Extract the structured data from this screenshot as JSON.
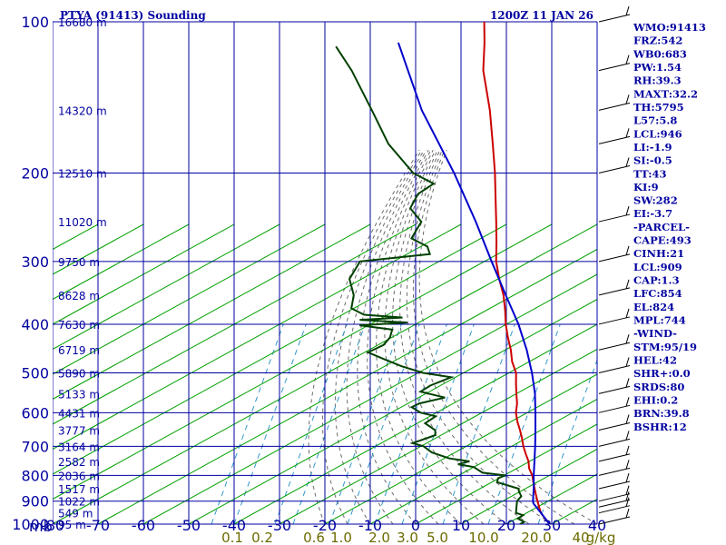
{
  "header": {
    "station": "PTYA (91413) Sounding",
    "time": "1200Z 11 JAN 26"
  },
  "chart_data": {
    "type": "line",
    "subtype": "skew-T log-P sounding",
    "xlabel": "",
    "ylabel": "",
    "x_unit_label": "mb",
    "temperature_axis": {
      "ticks": [
        -80,
        -70,
        -60,
        -50,
        -40,
        -30,
        -20,
        -10,
        0,
        10,
        20,
        30,
        40
      ],
      "range": [
        -80,
        40
      ]
    },
    "pressure_axis": {
      "ticks": [
        100,
        200,
        300,
        400,
        500,
        600,
        700,
        800,
        900,
        1000
      ],
      "range": [
        100,
        1000
      ],
      "scale": "log"
    },
    "height_labels": [
      {
        "p": 100,
        "label": "16680 m"
      },
      {
        "p": 150,
        "label": "14320 m"
      },
      {
        "p": 200,
        "label": "12510 m"
      },
      {
        "p": 250,
        "label": "11020 m"
      },
      {
        "p": 300,
        "label": "9750 m"
      },
      {
        "p": 350,
        "label": "8628 m"
      },
      {
        "p": 400,
        "label": "7630 m"
      },
      {
        "p": 450,
        "label": "6719 m"
      },
      {
        "p": 500,
        "label": "5890 m"
      },
      {
        "p": 550,
        "label": "5133 m"
      },
      {
        "p": 600,
        "label": "4431 m"
      },
      {
        "p": 650,
        "label": "3777 m"
      },
      {
        "p": 700,
        "label": "3164 m"
      },
      {
        "p": 750,
        "label": "2582 m"
      },
      {
        "p": 800,
        "label": "2036 m"
      },
      {
        "p": 850,
        "label": "1517 m"
      },
      {
        "p": 900,
        "label": "1022 m"
      },
      {
        "p": 950,
        "label": "549 m"
      },
      {
        "p": 1000,
        "label": "95 m"
      }
    ],
    "mixing_ratio_labels": [
      "0.1",
      "0.2",
      "0.6",
      "1.0",
      "2.0",
      "3.0",
      "5.0",
      "10.0",
      "20.0",
      "40",
      "g/kg"
    ],
    "series": [
      {
        "name": "",
        "role": "temperature",
        "color": "#cc0000",
        "points": [
          [
            1000,
            29.5
          ],
          [
            975,
            27.5
          ],
          [
            950,
            25.5
          ],
          [
            925,
            24.0
          ],
          [
            900,
            22.5
          ],
          [
            875,
            21.0
          ],
          [
            850,
            19.5
          ],
          [
            825,
            18.0
          ],
          [
            800,
            16.5
          ],
          [
            775,
            14.5
          ],
          [
            750,
            13.0
          ],
          [
            725,
            11.0
          ],
          [
            700,
            9.0
          ],
          [
            675,
            7.2
          ],
          [
            650,
            5.2
          ],
          [
            625,
            3.0
          ],
          [
            600,
            1.0
          ],
          [
            575,
            -0.5
          ],
          [
            550,
            -2.5
          ],
          [
            525,
            -4.5
          ],
          [
            500,
            -6.5
          ],
          [
            475,
            -9.5
          ],
          [
            450,
            -12.0
          ],
          [
            425,
            -15.0
          ],
          [
            400,
            -18.0
          ],
          [
            375,
            -20.8
          ],
          [
            350,
            -24.0
          ],
          [
            325,
            -28.0
          ],
          [
            300,
            -32.0
          ],
          [
            275,
            -35.5
          ],
          [
            250,
            -39.5
          ],
          [
            225,
            -44.0
          ],
          [
            200,
            -49.0
          ],
          [
            175,
            -55.0
          ],
          [
            150,
            -62.0
          ],
          [
            125,
            -71.0
          ],
          [
            110,
            -76.0
          ],
          [
            100,
            -80.0
          ]
        ]
      },
      {
        "name": "",
        "role": "dewpoint",
        "color": "#004000",
        "points": [
          [
            1000,
            23.0
          ],
          [
            990,
            23.5
          ],
          [
            975,
            21.5
          ],
          [
            960,
            22.0
          ],
          [
            950,
            20.0
          ],
          [
            925,
            19.0
          ],
          [
            900,
            18.0
          ],
          [
            880,
            18.0
          ],
          [
            860,
            16.5
          ],
          [
            850,
            16.0
          ],
          [
            825,
            10.0
          ],
          [
            810,
            9.5
          ],
          [
            800,
            10.5
          ],
          [
            790,
            5.0
          ],
          [
            770,
            2.0
          ],
          [
            760,
            -2.0
          ],
          [
            750,
            0.0
          ],
          [
            740,
            -5.0
          ],
          [
            720,
            -10.0
          ],
          [
            700,
            -13.0
          ],
          [
            690,
            -16.0
          ],
          [
            665,
            -12.5
          ],
          [
            650,
            -13.5
          ],
          [
            630,
            -17.0
          ],
          [
            610,
            -16.0
          ],
          [
            600,
            -20.0
          ],
          [
            585,
            -23.0
          ],
          [
            575,
            -22.0
          ],
          [
            560,
            -17.5
          ],
          [
            545,
            -24.0
          ],
          [
            530,
            -23.0
          ],
          [
            510,
            -20.0
          ],
          [
            500,
            -27.0
          ],
          [
            485,
            -33.0
          ],
          [
            470,
            -38.0
          ],
          [
            455,
            -43.0
          ],
          [
            440,
            -41.0
          ],
          [
            425,
            -41.0
          ],
          [
            410,
            -42.0
          ],
          [
            402,
            -50.0
          ],
          [
            397,
            -40.0
          ],
          [
            392,
            -51.0
          ],
          [
            388,
            -42.0
          ],
          [
            383,
            -51.0
          ],
          [
            372,
            -55.0
          ],
          [
            350,
            -57.0
          ],
          [
            325,
            -61.0
          ],
          [
            300,
            -62.0
          ],
          [
            290,
            -48.0
          ],
          [
            280,
            -50.0
          ],
          [
            270,
            -55.0
          ],
          [
            260,
            -55.5
          ],
          [
            250,
            -56.0
          ],
          [
            235,
            -61.0
          ],
          [
            220,
            -62.0
          ],
          [
            210,
            -60.5
          ],
          [
            200,
            -67.0
          ],
          [
            175,
            -78.0
          ],
          [
            150,
            -88.0
          ],
          [
            125,
            -100.0
          ],
          [
            112,
            -108.0
          ]
        ]
      },
      {
        "name": "",
        "role": "parcel",
        "color": "#0000cc",
        "points": [
          [
            1000,
            29.5
          ],
          [
            950,
            25.5
          ],
          [
            909,
            22.0
          ],
          [
            900,
            21.5
          ],
          [
            850,
            19.3
          ],
          [
            800,
            16.8
          ],
          [
            750,
            14.3
          ],
          [
            700,
            11.6
          ],
          [
            650,
            8.6
          ],
          [
            600,
            5.3
          ],
          [
            550,
            1.6
          ],
          [
            500,
            -3.0
          ],
          [
            450,
            -8.5
          ],
          [
            400,
            -15.2
          ],
          [
            350,
            -23.5
          ],
          [
            300,
            -33.0
          ],
          [
            250,
            -44.0
          ],
          [
            200,
            -58.0
          ],
          [
            150,
            -77.0
          ],
          [
            110,
            -95.0
          ]
        ]
      }
    ],
    "indices": [
      {
        "name": "WMO",
        "value": "91413"
      },
      {
        "name": "FRZ",
        "value": "542"
      },
      {
        "name": "WB0",
        "value": "683"
      },
      {
        "name": "PW",
        "value": "1.54"
      },
      {
        "name": "RH",
        "value": "39.3"
      },
      {
        "name": "MAXT",
        "value": "32.2"
      },
      {
        "name": "TH",
        "value": "5795"
      },
      {
        "name": "L57",
        "value": "5.8"
      },
      {
        "name": "LCL",
        "value": "946"
      },
      {
        "name": "LI",
        "value": "-1.9"
      },
      {
        "name": "SI",
        "value": "-0.5"
      },
      {
        "name": "TT",
        "value": "43"
      },
      {
        "name": "KI",
        "value": "9"
      },
      {
        "name": "SW",
        "value": "282"
      },
      {
        "name": "EI",
        "value": "-3.7"
      },
      {
        "name": "",
        "value": "-PARCEL-"
      },
      {
        "name": "CAPE",
        "value": "493"
      },
      {
        "name": "CINH",
        "value": "21"
      },
      {
        "name": "LCL",
        "value": "909"
      },
      {
        "name": "CAP",
        "value": "1.3"
      },
      {
        "name": "LFC",
        "value": "854"
      },
      {
        "name": "EL",
        "value": "824"
      },
      {
        "name": "MPL",
        "value": "744"
      },
      {
        "name": "",
        "value": "-WIND-"
      },
      {
        "name": "STM",
        "value": "95/19"
      },
      {
        "name": "HEL",
        "value": "42"
      },
      {
        "name": "SHR+",
        "value": "0.0"
      },
      {
        "name": "SRDS",
        "value": "80"
      },
      {
        "name": "EHI",
        "value": "0.2"
      },
      {
        "name": "BRN",
        "value": "39.8"
      },
      {
        "name": "BSHR",
        "value": "12"
      }
    ],
    "wind_barb_levels": [
      100,
      125,
      150,
      175,
      200,
      250,
      300,
      350,
      400,
      450,
      500,
      550,
      600,
      650,
      700,
      750,
      800,
      850,
      900,
      925,
      950,
      1000
    ],
    "grid": true
  },
  "colors": {
    "isobar": "#0000a0",
    "isotherm": "#0000a0",
    "dry_adiabat": "#00a000",
    "moist_adiabat": "#6b6b6b",
    "mixing_ratio": "#3399cc",
    "temperature": "#cc0000",
    "dewpoint": "#004000",
    "parcel": "#0000cc"
  }
}
